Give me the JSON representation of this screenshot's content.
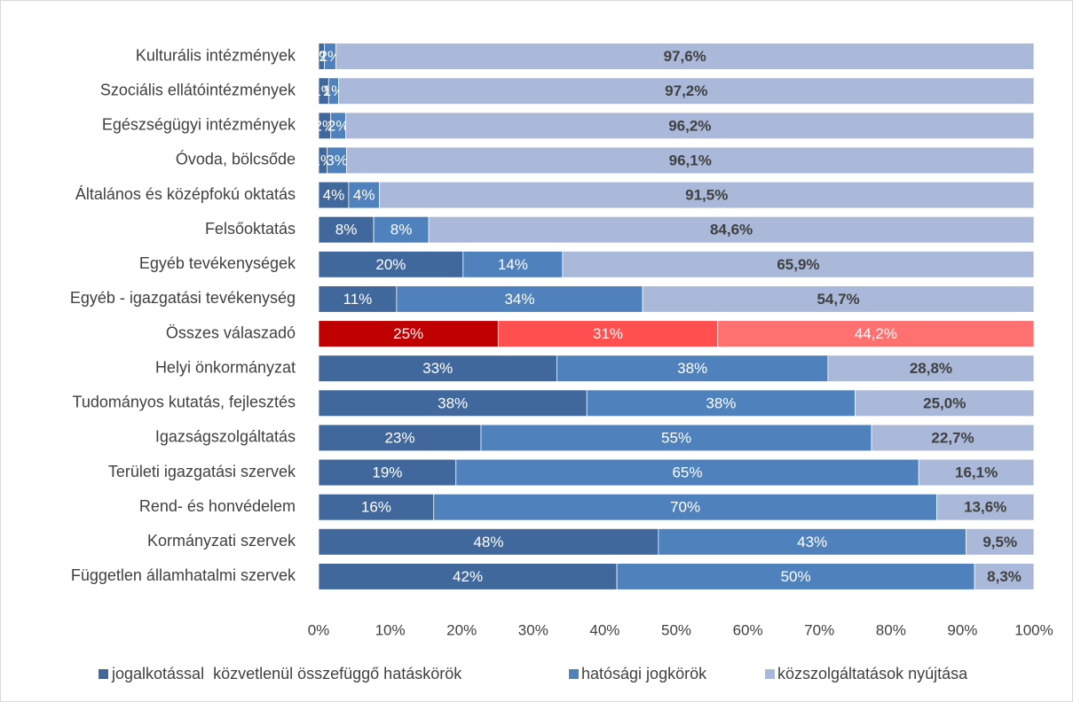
{
  "chart_data": {
    "type": "stacked_bar_horizontal_100",
    "categories": [
      "Kulturális intézmények",
      "Szociális ellátóintézmények",
      "Egészségügyi intézmények",
      "Óvoda, bölcsőde",
      "Általános és középfokú oktatás",
      "Felsőoktatás",
      "Egyéb tevékenységek",
      "Egyéb - igazgatási tevékenység",
      "Összes válaszadó",
      "Helyi önkormányzat",
      "Tudományos kutatás, fejlesztés",
      "Igazságszolgáltatás",
      "Területi igazgatási szervek",
      "Rend- és honvédelem",
      "Kormányzati szervek",
      "Független államhatalmi szervek"
    ],
    "series": [
      {
        "name": "jogalkotással  közvetlenül összefüggő hatáskörök",
        "color": "#41689c",
        "values": [
          0.8,
          1.4,
          1.7,
          1.2,
          4.2,
          7.7,
          20.2,
          10.9,
          25.1,
          33.3,
          37.5,
          22.7,
          19.2,
          16.1,
          47.5,
          41.7
        ],
        "value_labels": [
          "1%",
          "1%",
          "2%",
          "1%",
          "4%",
          "8%",
          "20%",
          "11%",
          "25%",
          "33%",
          "38%",
          "23%",
          "19%",
          "16%",
          "48%",
          "42%"
        ]
      },
      {
        "name": "hatósági jogkörök",
        "color": "#4f81bd",
        "values": [
          1.6,
          1.4,
          2.1,
          2.7,
          4.3,
          7.7,
          13.9,
          34.4,
          30.7,
          37.9,
          37.5,
          54.6,
          64.7,
          70.3,
          43.0,
          50.0
        ],
        "value_labels": [
          "2%",
          "1%",
          "2%",
          "3%",
          "4%",
          "8%",
          "14%",
          "34%",
          "31%",
          "38%",
          "38%",
          "55%",
          "65%",
          "70%",
          "43%",
          "50%"
        ]
      },
      {
        "name": "közszolgáltatások nyújtása",
        "color": "#aab9d9",
        "values": [
          97.6,
          97.2,
          96.2,
          96.1,
          91.5,
          84.6,
          65.9,
          54.7,
          44.2,
          28.8,
          25.0,
          22.7,
          16.1,
          13.6,
          9.5,
          8.3
        ],
        "value_labels": [
          "97,6%",
          "97,2%",
          "96,2%",
          "96,1%",
          "91,5%",
          "84,6%",
          "65,9%",
          "54,7%",
          "44,2%",
          "28,8%",
          "25,0%",
          "22,7%",
          "16,1%",
          "13,6%",
          "9,5%",
          "8,3%"
        ]
      }
    ],
    "highlight": {
      "category_index": 8,
      "colors": [
        "#c00000",
        "#ff4f4f",
        "#ff7171"
      ]
    },
    "xlim": [
      0,
      100
    ],
    "xticks": [
      {
        "value": 0,
        "label": "0%"
      },
      {
        "value": 10,
        "label": "10%"
      },
      {
        "value": 20,
        "label": "20%"
      },
      {
        "value": 30,
        "label": "30%"
      },
      {
        "value": 40,
        "label": "40%"
      },
      {
        "value": 50,
        "label": "50%"
      },
      {
        "value": 60,
        "label": "60%"
      },
      {
        "value": 70,
        "label": "70%"
      },
      {
        "value": 80,
        "label": "80%"
      },
      {
        "value": 90,
        "label": "90%"
      },
      {
        "value": 100,
        "label": "100%"
      }
    ],
    "legend": "bottom"
  }
}
